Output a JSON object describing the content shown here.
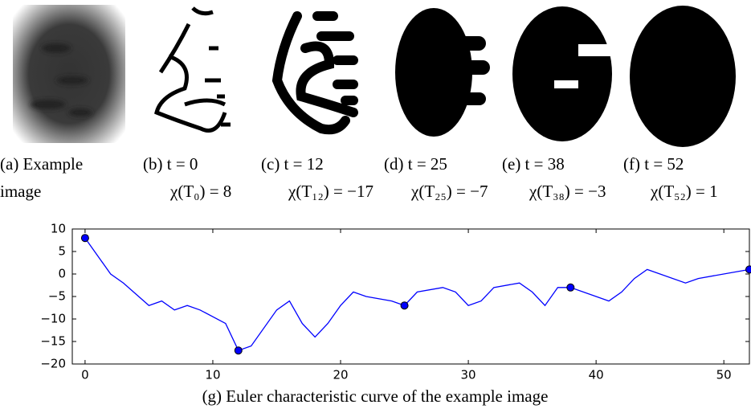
{
  "panels": [
    {
      "lines": [
        "(a)    Example",
        "image"
      ]
    },
    {
      "lines": [
        "(b) t = 0",
        "χ(T₀) = 8"
      ]
    },
    {
      "lines": [
        "(c) t = 12",
        "χ(T₁₂) = −17"
      ]
    },
    {
      "lines": [
        "(d) t = 25",
        "χ(T₂₅) = −7"
      ]
    },
    {
      "lines": [
        "(e) t = 38",
        "χ(T₃₈) = −3"
      ]
    },
    {
      "lines": [
        "(f) t = 52",
        "χ(T₅₂) = 1"
      ]
    }
  ],
  "caption": "(g) Euler characteristic curve of the example image",
  "chart_data": {
    "type": "line",
    "x": [
      0,
      2,
      3,
      5,
      6,
      7,
      8,
      9,
      11,
      12,
      13,
      15,
      16,
      17,
      18,
      19,
      20,
      21,
      22,
      24,
      25,
      26,
      28,
      29,
      30,
      31,
      32,
      34,
      35,
      36,
      37,
      38,
      40,
      41,
      42,
      43,
      44,
      47,
      48,
      52
    ],
    "series": [
      {
        "color": "#0000ff",
        "values": [
          8,
          0,
          -2,
          -7,
          -6,
          -8,
          -7,
          -8,
          -11,
          -17,
          -16,
          -8,
          -6,
          -11,
          -14,
          -11,
          -7,
          -4,
          -5,
          -6,
          -7,
          -4,
          -3,
          -4,
          -7,
          -6,
          -3,
          -2,
          -4,
          -7,
          -3,
          -3,
          -5,
          -6,
          -4,
          -1,
          1,
          -2,
          -1,
          1
        ]
      },
      {
        "color": "#0000ff",
        "marker": "circle",
        "x": [
          0,
          12,
          25,
          38,
          52
        ],
        "values": [
          8,
          -17,
          -7,
          -3,
          1
        ]
      }
    ],
    "xlim": [
      -1,
      52
    ],
    "ylim": [
      -20,
      10
    ],
    "xticks": [
      0,
      10,
      20,
      30,
      40,
      50
    ],
    "yticks": [
      10,
      5,
      0,
      {
        "value": -5,
        "label": "−5"
      },
      {
        "value": -10,
        "label": "−10"
      },
      {
        "value": -15,
        "label": "−15"
      },
      {
        "value": -20,
        "label": "−20"
      }
    ]
  }
}
